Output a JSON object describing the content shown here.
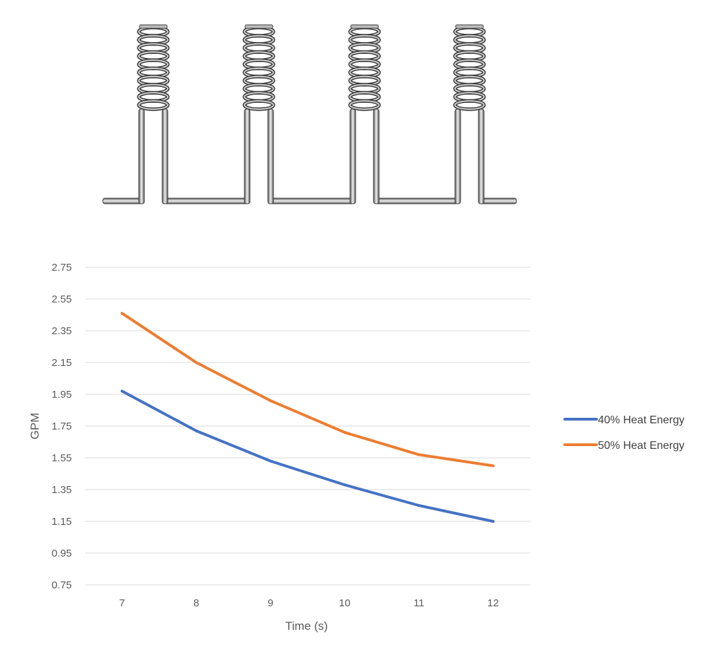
{
  "chart_data": {
    "type": "line",
    "title": "",
    "xlabel": "Time (s)",
    "ylabel": "GPM",
    "categories": [
      "7",
      "8",
      "9",
      "10",
      "11",
      "12"
    ],
    "x": [
      7,
      8,
      9,
      10,
      11,
      12
    ],
    "ylim": [
      0.75,
      2.75
    ],
    "yticks": [
      "0.75",
      "0.95",
      "1.15",
      "1.35",
      "1.55",
      "1.75",
      "1.95",
      "2.15",
      "2.35",
      "2.55",
      "2.75"
    ],
    "grid": true,
    "legend_position": "right",
    "series": [
      {
        "name": "40% Heat Energy",
        "color": "#4472c4",
        "values": [
          1.97,
          1.72,
          1.53,
          1.38,
          1.25,
          1.15
        ]
      },
      {
        "name": "50% Heat Energy",
        "color": "#ed7d31",
        "values": [
          2.46,
          2.15,
          1.91,
          1.71,
          1.57,
          1.5
        ]
      }
    ]
  },
  "illustration": {
    "subject": "coiled-tube-heater-diagram",
    "coil_count": 4,
    "coil_icon": "helical-coil-icon",
    "pipe_icon": "horizontal-pipe-icon"
  }
}
